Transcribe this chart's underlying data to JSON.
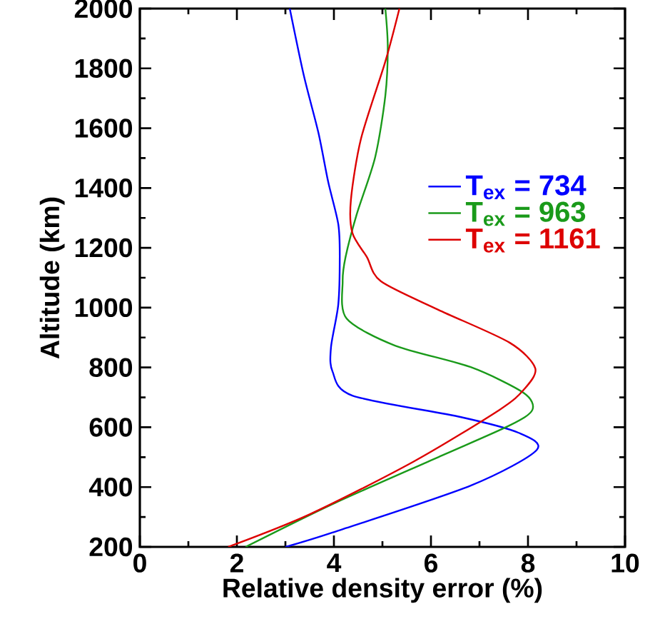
{
  "chart_data": {
    "type": "line",
    "xlabel": "Relative density error (%)",
    "ylabel": "Altitude (km)",
    "xlim": [
      0,
      10
    ],
    "xticks": [
      0,
      2,
      4,
      6,
      8,
      10
    ],
    "ylim": [
      200,
      2000
    ],
    "yticks": [
      200,
      400,
      600,
      800,
      1000,
      1200,
      1400,
      1600,
      1800,
      2000
    ],
    "legend": "right",
    "grid": false,
    "marker": "none",
    "line_style": "solid",
    "series": [
      {
        "name": "T$_{ex}$ = 734",
        "color": "#0000ff",
        "x": [
          3.0,
          3.97,
          6.82,
          8.18,
          7.8,
          6.62,
          4.38,
          3.97,
          3.94,
          4.09,
          4.12,
          4.09,
          3.88,
          3.68,
          3.38,
          3.09
        ],
        "values": [
          200,
          248,
          405,
          524,
          582,
          634,
          706,
          787,
          868,
          1011,
          1169,
          1279,
          1422,
          1585,
          1776,
          2000
        ]
      },
      {
        "name": "T$_{ex}$ = 963",
        "color": "#1a9a1a",
        "x": [
          2.18,
          3.97,
          6.15,
          7.62,
          8.09,
          7.91,
          6.82,
          5.26,
          4.26,
          4.18,
          4.24,
          4.47,
          4.85,
          5.06,
          5.11,
          5.06
        ],
        "values": [
          200,
          343,
          500,
          606,
          658,
          715,
          801,
          873,
          964,
          1088,
          1169,
          1312,
          1503,
          1709,
          1871,
          2000
        ]
      },
      {
        "name": "T$_{ex}$ = 1161",
        "color": "#dd0000",
        "x": [
          1.82,
          3.5,
          5.65,
          7.41,
          7.91,
          8.15,
          7.62,
          6.15,
          4.97,
          4.68,
          4.38,
          4.35,
          4.56,
          5.06,
          5.35
        ],
        "values": [
          200,
          309,
          486,
          658,
          725,
          797,
          883,
          993,
          1088,
          1169,
          1250,
          1360,
          1566,
          1823,
          2000
        ]
      }
    ]
  }
}
